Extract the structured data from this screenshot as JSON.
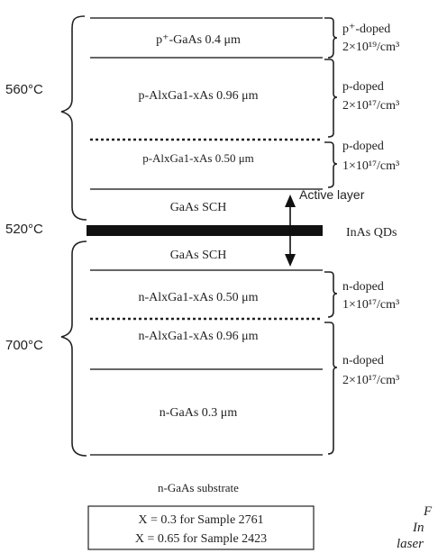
{
  "temperatures": {
    "t1": "560°C",
    "t2": "520°C",
    "t3": "700°C"
  },
  "layers": [
    {
      "label": "p⁺-GaAs 0.4 μm"
    },
    {
      "label": "p-AlxGa1-xAs 0.96 μm"
    },
    {
      "label": "p-AlxGa1-xAs 0.50 μm"
    },
    {
      "label": "GaAs SCH"
    },
    {
      "label": "GaAs SCH"
    },
    {
      "label": "n-AlxGa1-xAs 0.50 μm"
    },
    {
      "label": "n-AlxGa1-xAs 0.96 μm"
    },
    {
      "label": "n-GaAs 0.3 μm"
    }
  ],
  "doping": [
    {
      "type": "p⁺-doped",
      "level": "2×10¹⁹/cm³"
    },
    {
      "type": "p-doped",
      "level": "2×10¹⁷/cm³"
    },
    {
      "type": "p-doped",
      "level": "1×10¹⁷/cm³"
    },
    {
      "type": "n-doped",
      "level": "1×10¹⁷/cm³"
    },
    {
      "type": "n-doped",
      "level": "2×10¹⁷/cm³"
    }
  ],
  "active_layer_label": "Active layer",
  "qd_label": "InAs QDs",
  "substrate_label": "n-GaAs substrate",
  "notes": [
    "X = 0.3 for Sample 2761",
    "X = 0.65 for Sample 2423"
  ],
  "caption_fragments": [
    "F",
    "In",
    "laser"
  ]
}
